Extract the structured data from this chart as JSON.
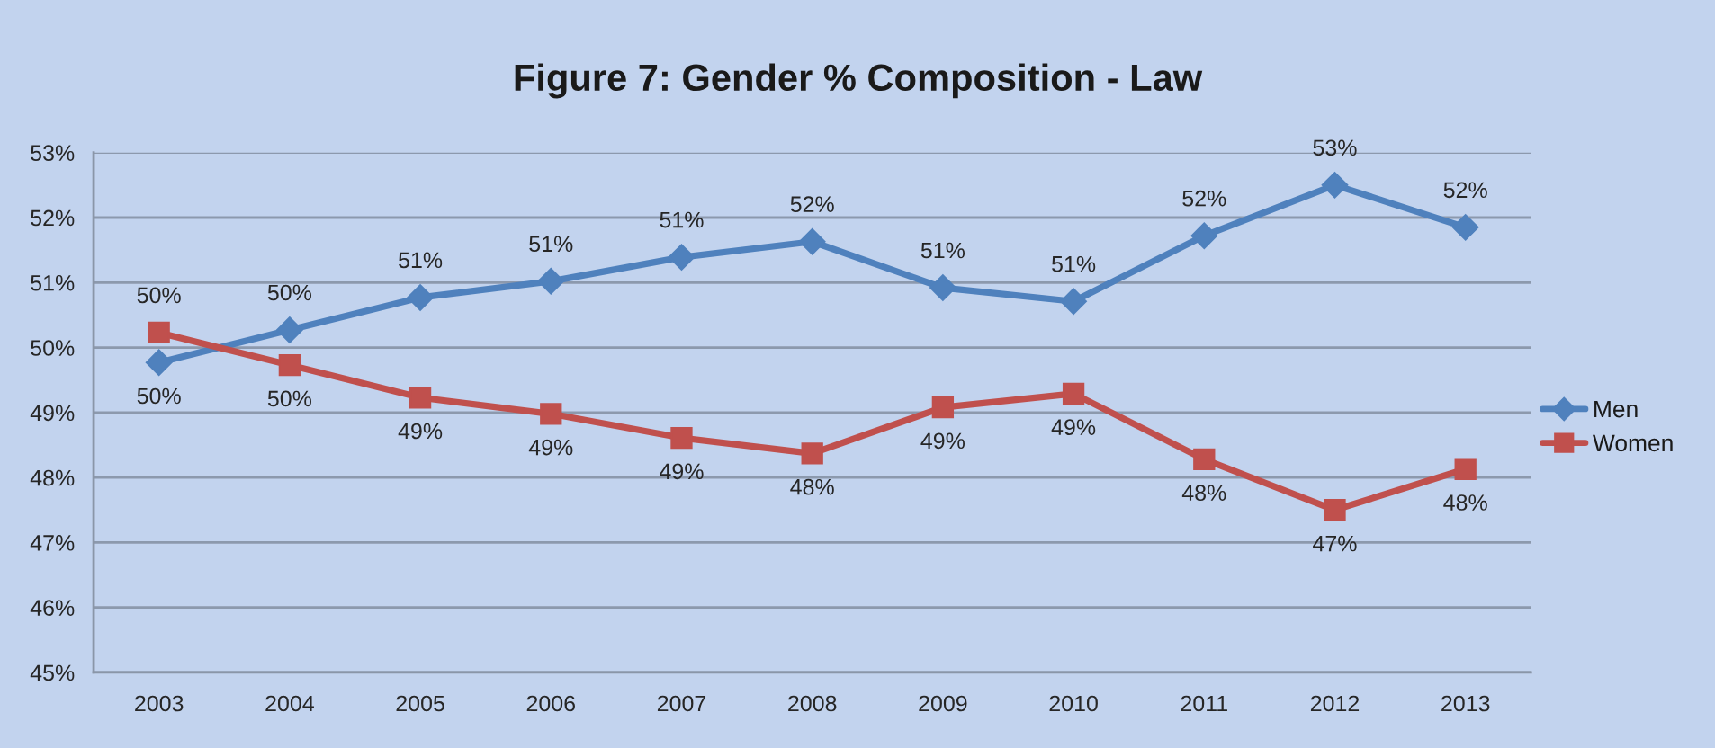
{
  "chart_data": {
    "type": "line",
    "title": "Figure 7: Gender % Composition - Law",
    "categories": [
      "2003",
      "2004",
      "2005",
      "2006",
      "2007",
      "2008",
      "2009",
      "2010",
      "2011",
      "2012",
      "2013"
    ],
    "series": [
      {
        "name": "Men",
        "color": "#4f81bd",
        "marker": "diamond",
        "values": [
          49.77,
          50.27,
          50.77,
          51.02,
          51.39,
          51.63,
          50.92,
          50.71,
          51.72,
          52.5,
          51.85
        ],
        "value_labels": [
          "50%",
          "50%",
          "51%",
          "51%",
          "51%",
          "52%",
          "51%",
          "51%",
          "52%",
          "53%",
          "52%"
        ]
      },
      {
        "name": "Women",
        "color": "#c0504d",
        "marker": "square",
        "values": [
          50.23,
          49.73,
          49.23,
          48.98,
          48.61,
          48.37,
          49.08,
          49.29,
          48.28,
          47.5,
          48.13
        ],
        "value_labels": [
          "50%",
          "50%",
          "49%",
          "49%",
          "49%",
          "48%",
          "49%",
          "49%",
          "48%",
          "47%",
          "48%"
        ]
      }
    ],
    "ylim": [
      45,
      53
    ],
    "yticks": [
      {
        "value": 45,
        "label": "45%"
      },
      {
        "value": 46,
        "label": "46%"
      },
      {
        "value": 47,
        "label": "47%"
      },
      {
        "value": 48,
        "label": "48%"
      },
      {
        "value": 49,
        "label": "49%"
      },
      {
        "value": 50,
        "label": "50%"
      },
      {
        "value": 51,
        "label": "51%"
      },
      {
        "value": 52,
        "label": "52%"
      },
      {
        "value": 53,
        "label": "53%"
      }
    ],
    "grid": "y",
    "legend": "right",
    "line_style": "solid"
  }
}
